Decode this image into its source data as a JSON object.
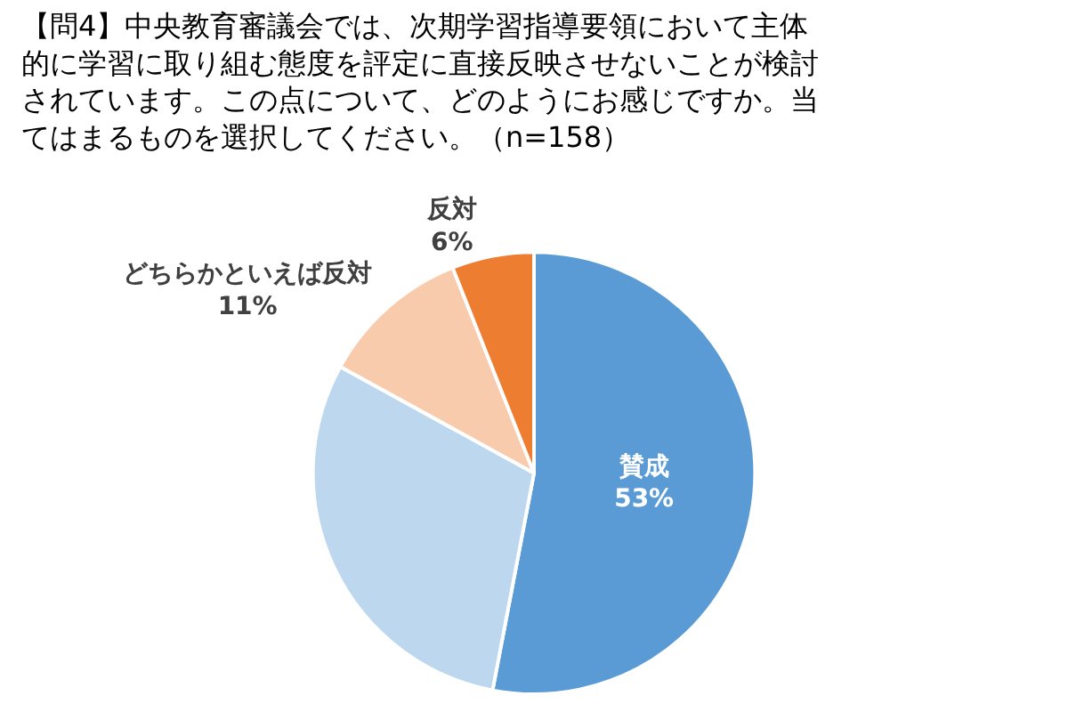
{
  "chart_data": {
    "type": "pie",
    "title": "【問4】中央教育審議会では、次期学習指導要領において主体的に学習に取り組む態度を評定に直接反映させないことが検討されています。この点について、どのようにお感じですか。当てはまるものを選択してください。（n=158）",
    "categories": [
      "賛成",
      null,
      "どちらかといえば反対",
      "反対"
    ],
    "values": [
      53,
      30,
      11,
      6
    ],
    "value_labels": [
      "53%",
      null,
      "11%",
      "6%"
    ],
    "colors": [
      "#5b9bd5",
      "#bdd7ee",
      "#f8cbad",
      "#ed7d31"
    ],
    "legend": false
  }
}
